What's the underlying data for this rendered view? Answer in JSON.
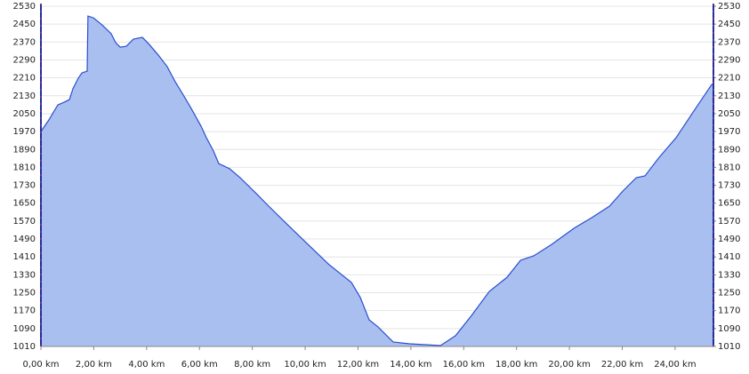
{
  "chart_data": {
    "type": "area",
    "x": [
      0,
      0.3,
      0.64,
      0.88,
      1.08,
      1.21,
      1.41,
      1.55,
      1.75,
      1.78,
      1.99,
      2.32,
      2.66,
      2.83,
      3.0,
      3.23,
      3.5,
      3.84,
      4.1,
      4.44,
      4.78,
      5.08,
      5.35,
      5.69,
      6.06,
      6.26,
      6.53,
      6.73,
      7.14,
      7.54,
      8.22,
      8.55,
      9.23,
      10.07,
      10.91,
      11.75,
      12.09,
      12.42,
      12.76,
      13.33,
      13.94,
      15.12,
      15.69,
      16.3,
      16.97,
      17.64,
      18.15,
      18.65,
      19.33,
      20.17,
      20.84,
      21.52,
      22.02,
      22.53,
      22.86,
      23.37,
      24.04,
      24.71,
      25.39,
      25.45
    ],
    "values": [
      1970,
      2022,
      2089,
      2101,
      2113,
      2161,
      2208,
      2232,
      2240,
      2486,
      2478,
      2446,
      2407,
      2367,
      2347,
      2351,
      2383,
      2391,
      2359,
      2312,
      2260,
      2193,
      2141,
      2073,
      1994,
      1943,
      1883,
      1827,
      1804,
      1764,
      1685,
      1645,
      1566,
      1470,
      1375,
      1296,
      1228,
      1129,
      1097,
      1030,
      1022,
      1014,
      1058,
      1149,
      1256,
      1319,
      1395,
      1415,
      1466,
      1538,
      1585,
      1637,
      1704,
      1764,
      1772,
      1851,
      1943,
      2062,
      2181,
      2181
    ],
    "color": "#a9bff0",
    "line_color": "#2a4fcf",
    "xlim": [
      0,
      25.45
    ],
    "xticks": [
      {
        "value": 0,
        "label": "0,00 km"
      },
      {
        "value": 2,
        "label": "2,00 km"
      },
      {
        "value": 4,
        "label": "4,00 km"
      },
      {
        "value": 6,
        "label": "6,00 km"
      },
      {
        "value": 8,
        "label": "8,00 km"
      },
      {
        "value": 10,
        "label": "10,00 km"
      },
      {
        "value": 12,
        "label": "12,00 km"
      },
      {
        "value": 14,
        "label": "14,00 km"
      },
      {
        "value": 16,
        "label": "16,00 km"
      },
      {
        "value": 18,
        "label": "18,00 km"
      },
      {
        "value": 20,
        "label": "20,00 km"
      },
      {
        "value": 22,
        "label": "22,00 km"
      },
      {
        "value": 24,
        "label": "24,00 km"
      }
    ],
    "ylim": [
      1010,
      2530
    ],
    "yticks": [
      1010,
      1090,
      1170,
      1250,
      1330,
      1410,
      1490,
      1570,
      1650,
      1730,
      1810,
      1890,
      1970,
      2050,
      2130,
      2210,
      2290,
      2370,
      2450,
      2530
    ],
    "y2lim": [
      1010,
      2530
    ],
    "y2ticks": [
      1010,
      1090,
      1170,
      1250,
      1330,
      1410,
      1490,
      1570,
      1650,
      1730,
      1810,
      1890,
      1970,
      2050,
      2130,
      2210,
      2290,
      2370,
      2450,
      2530
    ],
    "grid": true
  }
}
